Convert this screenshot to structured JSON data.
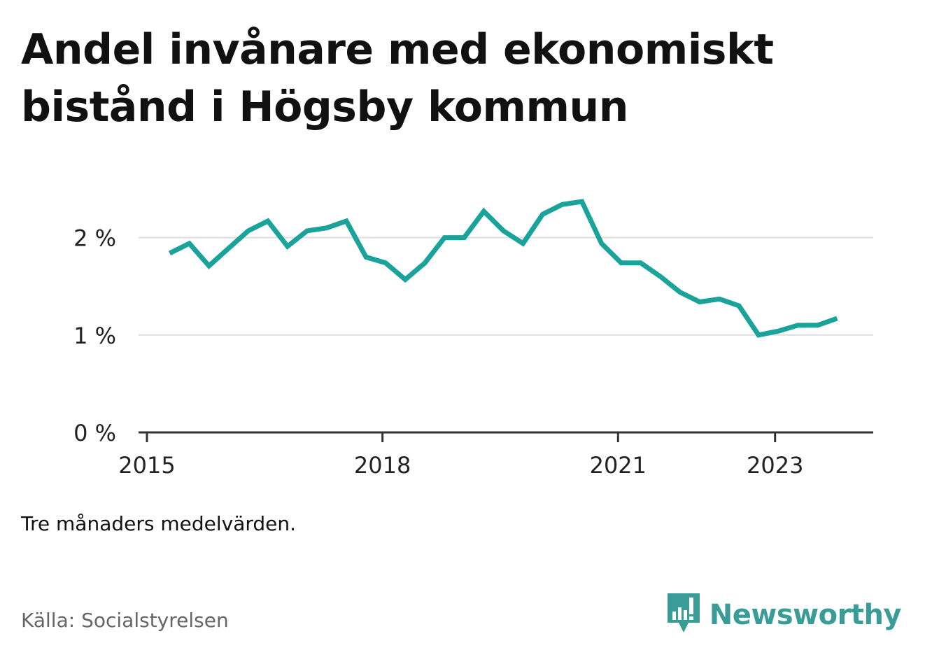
{
  "title": "Andel invånare med ekonomiskt bistånd i Högsby kommun",
  "note": "Tre månaders medelvärden.",
  "source": "Källa: Socialstyrelsen",
  "brand": {
    "name": "Newsworthy",
    "icon": "newsworthy-logo-icon",
    "color": "#3a9c97"
  },
  "colors": {
    "line": "#1aa39a",
    "grid": "#dddddd",
    "axis": "#333333",
    "text": "#222222"
  },
  "chart_data": {
    "type": "line",
    "title": "Andel invånare med ekonomiskt bistånd i Högsby kommun",
    "xlabel": "",
    "ylabel": "",
    "x_ticks": [
      {
        "value": 2015,
        "label": "2015"
      },
      {
        "value": 2018,
        "label": "2018"
      },
      {
        "value": 2021,
        "label": "2021"
      },
      {
        "value": 2023,
        "label": "2023"
      }
    ],
    "y_ticks": [
      {
        "value": 0,
        "label": "0 %"
      },
      {
        "value": 1,
        "label": "1 %"
      },
      {
        "value": 2,
        "label": "2 %"
      }
    ],
    "xlim": [
      2015,
      2024.25
    ],
    "ylim": [
      0,
      2.5
    ],
    "grid": true,
    "series": [
      {
        "x": [
          2015.29,
          2015.54,
          2015.79,
          2016.04,
          2016.29,
          2016.54,
          2016.79,
          2017.04,
          2017.29,
          2017.54,
          2017.79,
          2018.04,
          2018.29,
          2018.54,
          2018.79,
          2019.04,
          2019.29,
          2019.54,
          2019.79,
          2020.04,
          2020.29,
          2020.54,
          2020.79,
          2021.04,
          2021.29,
          2021.54,
          2021.79,
          2022.04,
          2022.29,
          2022.54,
          2022.79,
          2023.04,
          2023.29,
          2023.54,
          2023.79
        ],
        "values": [
          1.84,
          1.94,
          1.71,
          1.89,
          2.07,
          2.17,
          1.91,
          2.07,
          2.1,
          2.17,
          1.8,
          1.74,
          1.57,
          1.74,
          2.0,
          2.0,
          2.27,
          2.07,
          1.94,
          2.24,
          2.34,
          2.37,
          1.94,
          1.74,
          1.74,
          1.6,
          1.44,
          1.34,
          1.37,
          1.3,
          1.0,
          1.04,
          1.1,
          1.1,
          1.17
        ]
      }
    ]
  }
}
